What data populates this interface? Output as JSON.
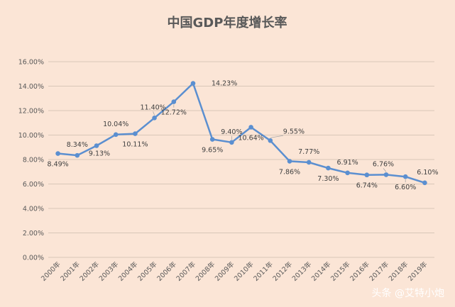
{
  "chart_data": {
    "type": "line",
    "title": "中国GDP年度增长率",
    "categories": [
      "2000年",
      "2001年",
      "2002年",
      "2003年",
      "2004年",
      "2005年",
      "2006年",
      "2007年",
      "2008年",
      "2009年",
      "2010年",
      "2011年",
      "2012年",
      "2013年",
      "2014年",
      "2015年",
      "2016年",
      "2017年",
      "2018年",
      "2019年"
    ],
    "values": [
      8.49,
      8.34,
      9.13,
      10.04,
      10.11,
      11.4,
      12.72,
      14.23,
      9.65,
      9.4,
      10.64,
      9.55,
      7.86,
      7.77,
      7.3,
      6.91,
      6.74,
      6.76,
      6.6,
      6.1
    ],
    "data_labels": [
      "8.49%",
      "8.34%",
      "9.13%",
      "10.04%",
      "10.11%",
      "11.40%",
      "12.72%",
      "14.23%",
      "9.65%",
      "9.40%",
      "10.64%",
      "9.55%",
      "7.86%",
      "7.77%",
      "7.30%",
      "6.91%",
      "6.74%",
      "6.76%",
      "6.60%",
      "6.10%"
    ],
    "yticks": [
      "0.00%",
      "2.00%",
      "4.00%",
      "6.00%",
      "8.00%",
      "10.00%",
      "12.00%",
      "14.00%",
      "16.00%"
    ],
    "ylim": [
      0,
      16
    ],
    "grid": true,
    "line_color": "#5b8fd0"
  },
  "watermark": {
    "text": "头条 @艾特小炮"
  }
}
